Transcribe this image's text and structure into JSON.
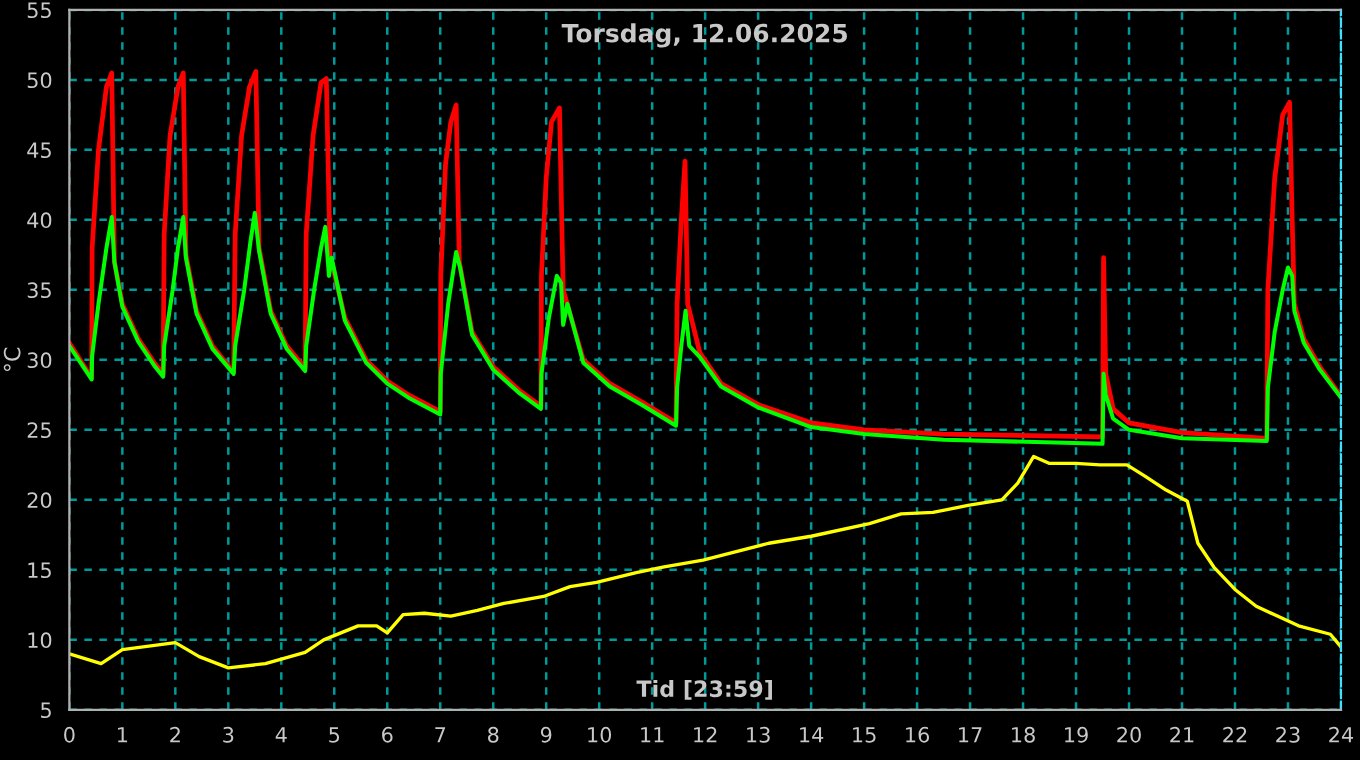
{
  "chart_data": {
    "type": "line",
    "title": "Torsdag, 12.06.2025",
    "xlabel": "Tid [23:59]",
    "ylabel": "°C",
    "xlim": [
      0,
      24
    ],
    "ylim": [
      5,
      55
    ],
    "xticks": [
      0,
      1,
      2,
      3,
      4,
      5,
      6,
      7,
      8,
      9,
      10,
      11,
      12,
      13,
      14,
      15,
      16,
      17,
      18,
      19,
      20,
      21,
      22,
      23,
      24
    ],
    "yticks": [
      5,
      10,
      15,
      20,
      25,
      30,
      35,
      40,
      45,
      50,
      55
    ],
    "grid": true,
    "legend": false,
    "marker": "none",
    "line_style": "solid",
    "series": [
      {
        "color": "#ff0000",
        "x": [
          0,
          0.42,
          0.43,
          0.55,
          0.7,
          0.8,
          0.85,
          1.0,
          1.3,
          1.6,
          1.77,
          1.79,
          1.9,
          2.05,
          2.15,
          2.2,
          2.4,
          2.7,
          3.1,
          3.13,
          3.25,
          3.4,
          3.52,
          3.58,
          3.8,
          4.1,
          4.45,
          4.47,
          4.6,
          4.75,
          4.85,
          4.92,
          5.2,
          5.6,
          6.0,
          6.4,
          7.0,
          7.01,
          7.1,
          7.2,
          7.3,
          7.36,
          7.6,
          8.0,
          8.5,
          8.9,
          8.91,
          9.0,
          9.1,
          9.25,
          9.32,
          9.7,
          10.2,
          10.8,
          11.45,
          11.47,
          11.55,
          11.62,
          11.67,
          11.9,
          12.3,
          13,
          14,
          15,
          16.5,
          19.5,
          19.52,
          19.56,
          19.7,
          20,
          21,
          22.6,
          22.62,
          22.75,
          22.9,
          23.03,
          23.08,
          23.12,
          23.3,
          23.6,
          24
        ],
        "values": [
          31.2,
          28.7,
          38,
          45,
          49.5,
          50.5,
          37,
          34,
          31.5,
          29.8,
          29.0,
          39,
          46,
          49.5,
          50.5,
          37.5,
          33.5,
          31,
          29.1,
          39,
          46,
          49.5,
          50.6,
          38,
          33.5,
          31,
          29.4,
          39,
          46,
          49.8,
          50.1,
          37.5,
          33,
          30,
          28.5,
          27.5,
          26.3,
          36,
          44,
          47,
          48.2,
          37,
          32,
          29.5,
          27.8,
          26.7,
          36,
          43,
          47,
          48,
          35,
          30,
          28.3,
          27,
          25.5,
          34,
          40,
          44.2,
          34,
          30.5,
          28.3,
          26.8,
          25.5,
          25,
          24.7,
          24.5,
          37.3,
          29,
          26.5,
          25.5,
          24.8,
          24.4,
          35,
          43,
          47.5,
          48.4,
          40,
          34,
          31.5,
          29.5,
          27.4
        ]
      },
      {
        "color": "#00ff00",
        "x": [
          0,
          0.42,
          0.43,
          0.55,
          0.7,
          0.8,
          0.85,
          1.0,
          1.3,
          1.6,
          1.77,
          1.79,
          1.95,
          2.05,
          2.15,
          2.2,
          2.4,
          2.7,
          3.1,
          3.13,
          3.3,
          3.42,
          3.5,
          3.58,
          3.8,
          4.1,
          4.45,
          4.47,
          4.62,
          4.75,
          4.83,
          4.9,
          4.95,
          5.2,
          5.6,
          6.0,
          6.4,
          7.0,
          7.01,
          7.15,
          7.3,
          7.38,
          7.6,
          8.0,
          8.5,
          8.9,
          8.91,
          9.05,
          9.2,
          9.28,
          9.32,
          9.4,
          9.7,
          10.2,
          10.8,
          11.45,
          11.47,
          11.55,
          11.63,
          11.7,
          11.9,
          12.3,
          13,
          14,
          15,
          16.5,
          19.5,
          19.52,
          19.56,
          19.7,
          20,
          21,
          22.6,
          22.62,
          22.75,
          22.9,
          23.0,
          23.08,
          23.12,
          23.3,
          23.6,
          24
        ],
        "values": [
          31.0,
          28.6,
          30.3,
          34,
          38,
          40.2,
          37,
          33.8,
          31.3,
          29.6,
          28.8,
          31,
          35,
          38,
          40.2,
          37.3,
          33.3,
          30.8,
          29.0,
          31,
          35,
          38.5,
          40.5,
          37.8,
          33.3,
          30.8,
          29.2,
          31,
          35,
          38,
          39.5,
          36,
          37.3,
          32.8,
          29.8,
          28.3,
          27.3,
          26.1,
          29,
          34,
          37.7,
          36.5,
          31.8,
          29.3,
          27.6,
          26.5,
          29,
          33,
          36,
          35.5,
          32.5,
          34,
          29.8,
          28.1,
          26.8,
          25.3,
          28,
          31,
          33.5,
          31,
          30.2,
          28.1,
          26.6,
          25.2,
          24.7,
          24.3,
          24.0,
          29,
          27.5,
          25.8,
          25.0,
          24.4,
          24.2,
          28,
          32,
          35,
          36.6,
          36,
          33.5,
          31.2,
          29.3,
          27.3
        ]
      },
      {
        "color": "#ffff00",
        "x": [
          0,
          0.6,
          1.0,
          2.0,
          2.45,
          3.0,
          3.7,
          4.45,
          4.8,
          5.45,
          5.8,
          6.0,
          6.3,
          6.7,
          7.2,
          7.7,
          8.2,
          8.95,
          9.45,
          9.95,
          10.7,
          11.2,
          11.96,
          13.2,
          14.0,
          15.1,
          15.7,
          16.3,
          16.96,
          17.6,
          17.9,
          18.2,
          18.5,
          19.0,
          19.45,
          19.96,
          20.3,
          20.7,
          21.1,
          21.3,
          21.6,
          22.0,
          22.4,
          22.8,
          23.2,
          23.8,
          24.0
        ],
        "values": [
          9.0,
          8.3,
          9.3,
          9.8,
          8.8,
          8.0,
          8.3,
          9.1,
          10,
          11.0,
          11.0,
          10.5,
          11.8,
          11.9,
          11.7,
          12.1,
          12.6,
          13.1,
          13.8,
          14.1,
          14.8,
          15.2,
          15.7,
          16.9,
          17.4,
          18.3,
          19.0,
          19.1,
          19.6,
          20.0,
          21.2,
          23.1,
          22.6,
          22.6,
          22.5,
          22.5,
          21.7,
          20.7,
          19.9,
          16.9,
          15.2,
          13.6,
          12.4,
          11.7,
          11.0,
          10.4,
          9.5
        ]
      }
    ]
  }
}
